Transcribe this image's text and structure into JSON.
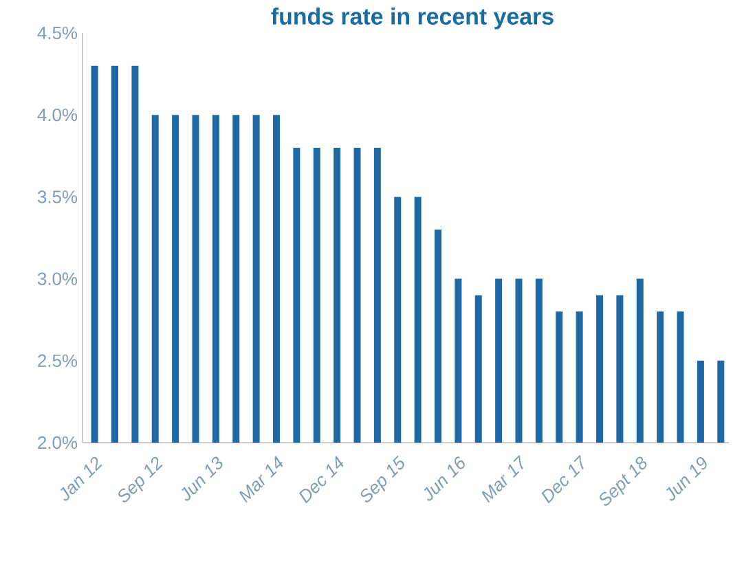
{
  "chart_data": {
    "type": "bar",
    "title": "funds rate in recent years",
    "categories": [
      "Jan 12",
      null,
      null,
      "Sep 12",
      null,
      null,
      "Jun 13",
      null,
      null,
      "Mar 14",
      null,
      null,
      "Dec 14",
      null,
      null,
      "Sep 15",
      null,
      null,
      "Jun 16",
      null,
      null,
      "Mar 17",
      null,
      null,
      "Dec 17",
      null,
      null,
      "Sept 18",
      null,
      null,
      "Jun 19",
      null
    ],
    "values": [
      4.3,
      4.3,
      4.3,
      4.0,
      4.0,
      4.0,
      4.0,
      4.0,
      4.0,
      4.0,
      3.8,
      3.8,
      3.8,
      3.8,
      3.8,
      3.5,
      3.5,
      3.3,
      3.0,
      2.9,
      3.0,
      3.0,
      3.0,
      2.8,
      2.8,
      2.9,
      2.9,
      3.0,
      2.8,
      2.8,
      2.5,
      2.5
    ],
    "color": "#1f68a6",
    "ylim": [
      2.0,
      4.5
    ],
    "yticks": [
      {
        "value": 2.0,
        "label": "2.0%"
      },
      {
        "value": 2.5,
        "label": "2.5%"
      },
      {
        "value": 3.0,
        "label": "3.0%"
      },
      {
        "value": 3.5,
        "label": "3.5%"
      },
      {
        "value": 4.0,
        "label": "4.0%"
      },
      {
        "value": 4.5,
        "label": "4.5%"
      }
    ],
    "grid": false
  }
}
